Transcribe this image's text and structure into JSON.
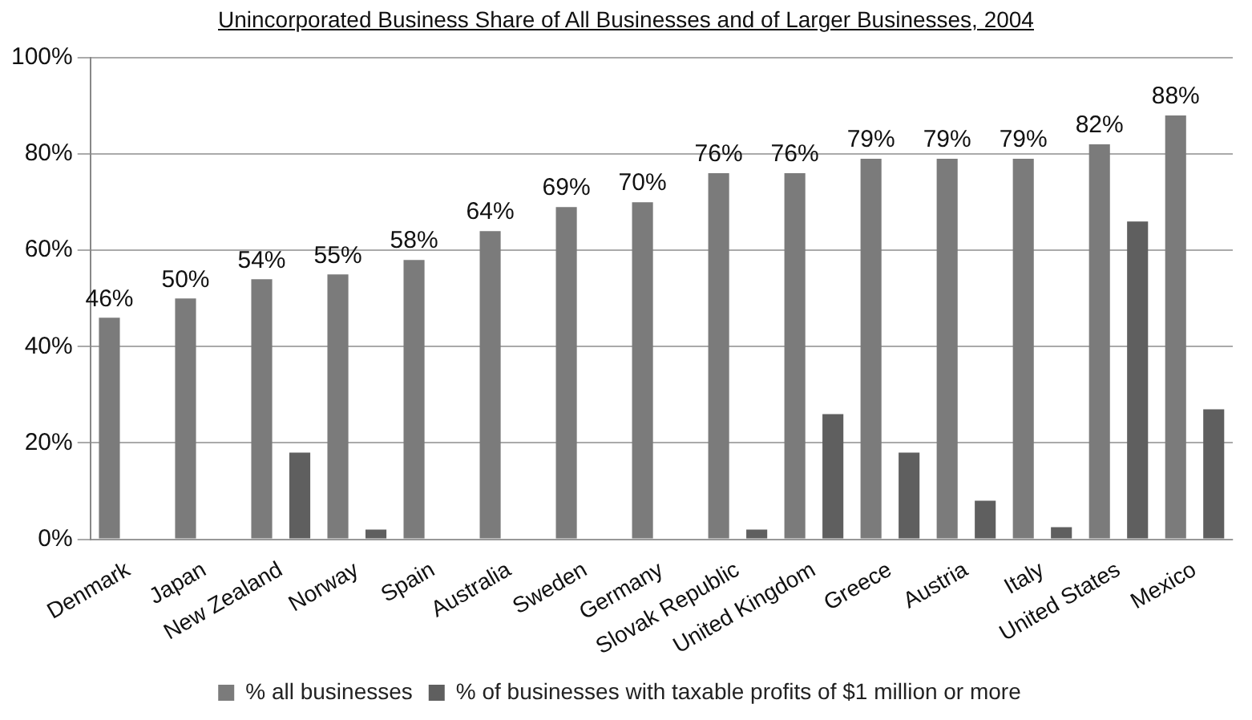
{
  "chart_data": {
    "type": "bar",
    "title": "Unincorporated Business Share of All Businesses and of Larger Businesses, 2004",
    "categories": [
      "Denmark",
      "Japan",
      "New Zealand",
      "Norway",
      "Spain",
      "Australia",
      "Sweden",
      "Germany",
      "Slovak Republic",
      "United Kingdom",
      "Greece",
      "Austria",
      "Italy",
      "United States",
      "Mexico"
    ],
    "series": [
      {
        "name": "% all businesses",
        "color": "#7b7b7b",
        "values": [
          46,
          50,
          54,
          55,
          58,
          64,
          69,
          70,
          76,
          76,
          79,
          79,
          79,
          82,
          88
        ],
        "value_labels": [
          "46%",
          "50%",
          "54%",
          "55%",
          "58%",
          "64%",
          "69%",
          "70%",
          "76%",
          "76%",
          "79%",
          "79%",
          "79%",
          "82%",
          "88%"
        ]
      },
      {
        "name": "% of businesses with taxable profits of $1 million or more",
        "color": "#5f5f5f",
        "values": [
          null,
          null,
          18,
          2,
          null,
          null,
          null,
          null,
          2,
          26,
          18,
          8,
          2.5,
          66,
          27
        ]
      }
    ],
    "ylim": [
      0,
      100
    ],
    "yticks": [
      {
        "value": 0,
        "label": "0%"
      },
      {
        "value": 20,
        "label": "20%"
      },
      {
        "value": 40,
        "label": "40%"
      },
      {
        "value": 60,
        "label": "60%"
      },
      {
        "value": 80,
        "label": "80%"
      },
      {
        "value": 100,
        "label": "100%"
      }
    ],
    "grid": "y",
    "legend": "bottom"
  }
}
